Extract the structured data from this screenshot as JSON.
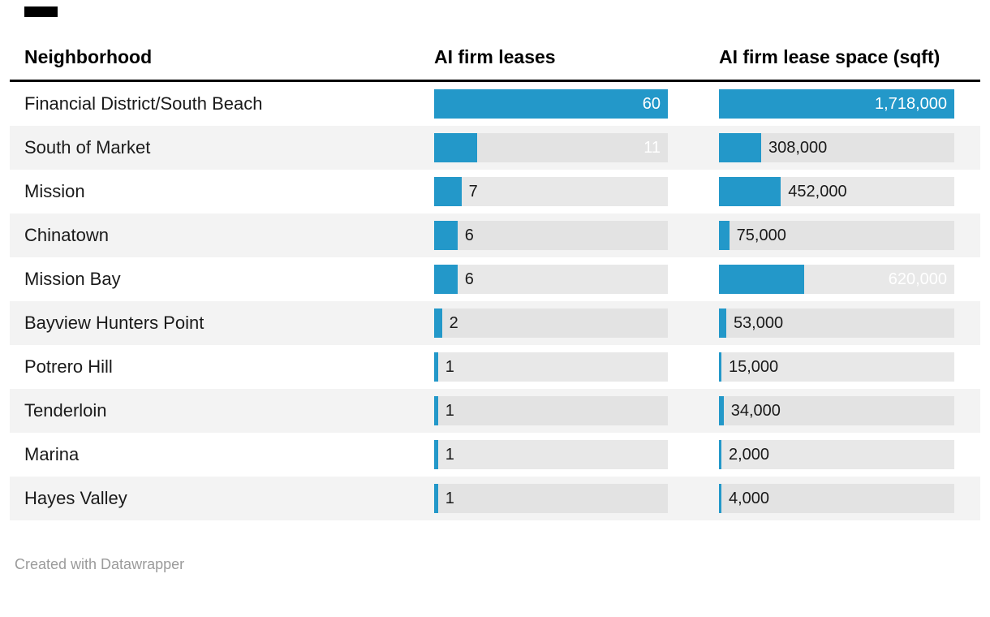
{
  "accent_bar_color": "#000000",
  "chart_data": {
    "type": "table",
    "title": "",
    "bar_color": "#2398c9",
    "track_color": "#e8e8e8",
    "columns": [
      "Neighborhood",
      "AI firm leases",
      "AI firm lease space (sqft)"
    ],
    "leases_max": 60,
    "sqft_max": 1718000,
    "rows": [
      {
        "neighborhood": "Financial District/South Beach",
        "leases": 60,
        "leases_label": "60",
        "leases_inside": true,
        "sqft": 1718000,
        "sqft_label": "1,718,000",
        "sqft_inside": true
      },
      {
        "neighborhood": "South of Market",
        "leases": 11,
        "leases_label": "11",
        "leases_inside": true,
        "sqft": 308000,
        "sqft_label": "308,000",
        "sqft_inside": false
      },
      {
        "neighborhood": "Mission",
        "leases": 7,
        "leases_label": "7",
        "leases_inside": false,
        "sqft": 452000,
        "sqft_label": "452,000",
        "sqft_inside": false
      },
      {
        "neighborhood": "Chinatown",
        "leases": 6,
        "leases_label": "6",
        "leases_inside": false,
        "sqft": 75000,
        "sqft_label": "75,000",
        "sqft_inside": false
      },
      {
        "neighborhood": "Mission Bay",
        "leases": 6,
        "leases_label": "6",
        "leases_inside": false,
        "sqft": 620000,
        "sqft_label": "620,000",
        "sqft_inside": true
      },
      {
        "neighborhood": "Bayview Hunters Point",
        "leases": 2,
        "leases_label": "2",
        "leases_inside": false,
        "sqft": 53000,
        "sqft_label": "53,000",
        "sqft_inside": false
      },
      {
        "neighborhood": "Potrero Hill",
        "leases": 1,
        "leases_label": "1",
        "leases_inside": false,
        "sqft": 15000,
        "sqft_label": "15,000",
        "sqft_inside": false
      },
      {
        "neighborhood": "Tenderloin",
        "leases": 1,
        "leases_label": "1",
        "leases_inside": false,
        "sqft": 34000,
        "sqft_label": "34,000",
        "sqft_inside": false
      },
      {
        "neighborhood": "Marina",
        "leases": 1,
        "leases_label": "1",
        "leases_inside": false,
        "sqft": 2000,
        "sqft_label": "2,000",
        "sqft_inside": false
      },
      {
        "neighborhood": "Hayes Valley",
        "leases": 1,
        "leases_label": "1",
        "leases_inside": false,
        "sqft": 4000,
        "sqft_label": "4,000",
        "sqft_inside": false
      }
    ]
  },
  "footer": {
    "credit": "Created with Datawrapper"
  }
}
